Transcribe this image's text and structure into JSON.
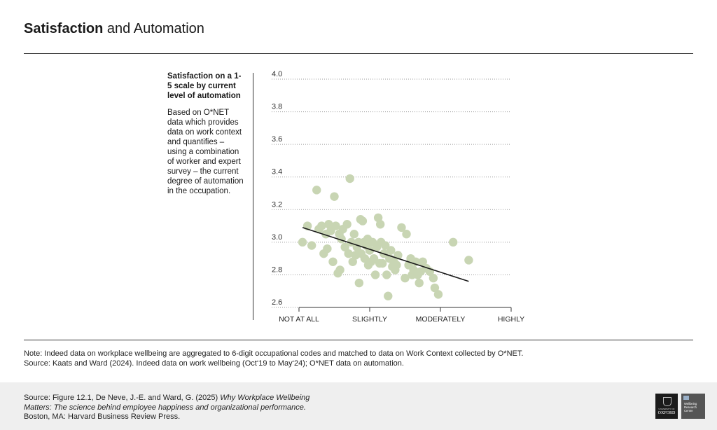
{
  "header": {
    "title_bold": "Satisfaction",
    "title_rest": " and Automation"
  },
  "sidebar": {
    "heading": "Satisfaction on a 1-5 scale by current level of automation",
    "body": "Based on O*NET data which provides data on work context and quantifies – using a combination of worker and expert survey – the current degree of automation in the occupation."
  },
  "note": {
    "line1": "Note: Indeed data on workplace wellbeing are aggregated to 6-digit occupational codes and matched to data on Work Context collected by O*NET.",
    "line2": "Source: Kaats and Ward (2024). Indeed data on work wellbeing (Oct‘19 to May‘24); O*NET data on automation."
  },
  "footer": {
    "source_prefix": "Source: Figure 12.1, De Neve, J.-E. and Ward, G. (2025) ",
    "source_italic": "Why Workplace Wellbeing Matters: The science behind employee happiness and organizational performance.",
    "source_suffix": " Boston, MA: Harvard Business Review Press.",
    "logo1_small": "UNIVERSITY OF",
    "logo1_big": "OXFORD",
    "logo2": "Wellbeing Research Centre"
  },
  "colors": {
    "point": "#c8d5b3",
    "line": "#1a1a1a",
    "grid": "#9a9a9a"
  },
  "chart_data": {
    "type": "scatter",
    "title": "",
    "xlabel": "",
    "ylabel": "",
    "xlim": [
      1,
      4
    ],
    "ylim": [
      2.6,
      4.0
    ],
    "xticks": [
      1,
      2,
      3,
      4
    ],
    "xtick_labels": [
      "NOT AT ALL",
      "SLIGHTLY",
      "MODERATELY",
      "HIGHLY"
    ],
    "yticks": [
      2.6,
      2.8,
      3.0,
      3.2,
      3.4,
      3.6,
      3.8,
      4.0
    ],
    "ytick_labels": [
      "2.6",
      "2.8",
      "3.0",
      "3.2",
      "3.4",
      "3.6",
      "3.8",
      "4.0"
    ],
    "grid": "horizontal dotted",
    "points": [
      [
        1.05,
        3.0
      ],
      [
        1.12,
        3.1
      ],
      [
        1.18,
        2.98
      ],
      [
        1.25,
        3.32
      ],
      [
        1.28,
        3.08
      ],
      [
        1.32,
        3.1
      ],
      [
        1.35,
        2.93
      ],
      [
        1.38,
        3.05
      ],
      [
        1.4,
        2.96
      ],
      [
        1.42,
        3.11
      ],
      [
        1.45,
        3.07
      ],
      [
        1.48,
        2.88
      ],
      [
        1.5,
        3.28
      ],
      [
        1.52,
        3.1
      ],
      [
        1.55,
        2.81
      ],
      [
        1.57,
        3.05
      ],
      [
        1.58,
        2.83
      ],
      [
        1.6,
        3.02
      ],
      [
        1.62,
        3.08
      ],
      [
        1.65,
        2.97
      ],
      [
        1.68,
        3.11
      ],
      [
        1.7,
        2.93
      ],
      [
        1.72,
        3.39
      ],
      [
        1.74,
        3.0
      ],
      [
        1.76,
        2.88
      ],
      [
        1.78,
        3.05
      ],
      [
        1.8,
        2.92
      ],
      [
        1.82,
        2.97
      ],
      [
        1.84,
        3.0
      ],
      [
        1.85,
        2.75
      ],
      [
        1.87,
        3.14
      ],
      [
        1.88,
        2.93
      ],
      [
        1.9,
        3.13
      ],
      [
        1.92,
        3.0
      ],
      [
        1.93,
        2.9
      ],
      [
        1.95,
        2.98
      ],
      [
        1.97,
        3.02
      ],
      [
        1.98,
        2.86
      ],
      [
        2.0,
        2.95
      ],
      [
        2.02,
        2.88
      ],
      [
        2.04,
        3.0
      ],
      [
        2.06,
        2.9
      ],
      [
        2.08,
        2.8
      ],
      [
        2.1,
        2.97
      ],
      [
        2.12,
        3.15
      ],
      [
        2.14,
        2.87
      ],
      [
        2.15,
        3.11
      ],
      [
        2.16,
        3.0
      ],
      [
        2.18,
        2.87
      ],
      [
        2.2,
        2.93
      ],
      [
        2.22,
        2.98
      ],
      [
        2.24,
        2.8
      ],
      [
        2.26,
        2.67
      ],
      [
        2.28,
        2.9
      ],
      [
        2.3,
        2.95
      ],
      [
        2.32,
        2.85
      ],
      [
        2.34,
        2.88
      ],
      [
        2.36,
        2.83
      ],
      [
        2.38,
        2.86
      ],
      [
        2.4,
        2.92
      ],
      [
        2.45,
        3.09
      ],
      [
        2.5,
        2.78
      ],
      [
        2.52,
        3.05
      ],
      [
        2.55,
        2.86
      ],
      [
        2.58,
        2.9
      ],
      [
        2.6,
        2.8
      ],
      [
        2.62,
        2.83
      ],
      [
        2.65,
        2.88
      ],
      [
        2.68,
        2.8
      ],
      [
        2.7,
        2.75
      ],
      [
        2.72,
        2.82
      ],
      [
        2.75,
        2.88
      ],
      [
        2.8,
        2.84
      ],
      [
        2.85,
        2.82
      ],
      [
        2.9,
        2.78
      ],
      [
        2.92,
        2.72
      ],
      [
        2.97,
        2.68
      ],
      [
        3.18,
        3.0
      ],
      [
        3.4,
        2.89
      ]
    ],
    "trendline": {
      "x": [
        1.05,
        3.4
      ],
      "y": [
        3.09,
        2.76
      ]
    }
  }
}
